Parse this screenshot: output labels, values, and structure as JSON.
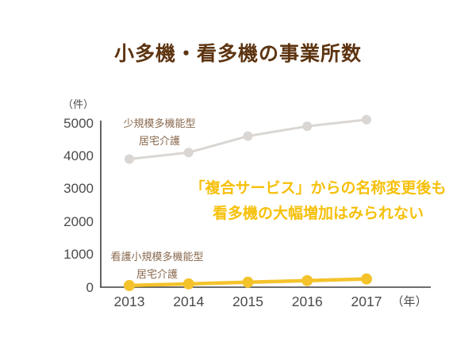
{
  "title": "小多機・看多機の事業所数",
  "colors": {
    "background": "#ffffff",
    "title": "#5d3411",
    "annotation": "#f6c00a",
    "axis": "#3d3d3d",
    "tick_text": "#4b4b4b",
    "series_label_text": "#8a6a4f",
    "series_gray": "#d9d6d3",
    "series_yellow": "#f4c32c"
  },
  "annotation": {
    "line1": "「複合サービス」からの名称変更後も",
    "line2": "看多機の大幅増加はみられない"
  },
  "chart_data": {
    "type": "line",
    "title": "小多機・看多機の事業所数",
    "x": [
      2013,
      2014,
      2015,
      2016,
      2017
    ],
    "x_unit": "（年）",
    "y_unit": "（件）",
    "ylim": [
      0,
      5000
    ],
    "yticks": [
      0,
      1000,
      2000,
      3000,
      4000,
      5000
    ],
    "grid": false,
    "legend_position": "labels-beside-lines",
    "series": [
      {
        "name": "少規模多機能型居宅介護",
        "label_lines": [
          "少規模多機能型",
          "居宅介護"
        ],
        "color": "#d9d6d3",
        "values": [
          3900,
          4100,
          4600,
          4900,
          5100
        ]
      },
      {
        "name": "看護小規模多機能型居宅介護",
        "label_lines": [
          "看護小規模多機能型",
          "居宅介護"
        ],
        "color": "#f4c32c",
        "values": [
          50,
          100,
          150,
          200,
          250
        ]
      }
    ]
  }
}
